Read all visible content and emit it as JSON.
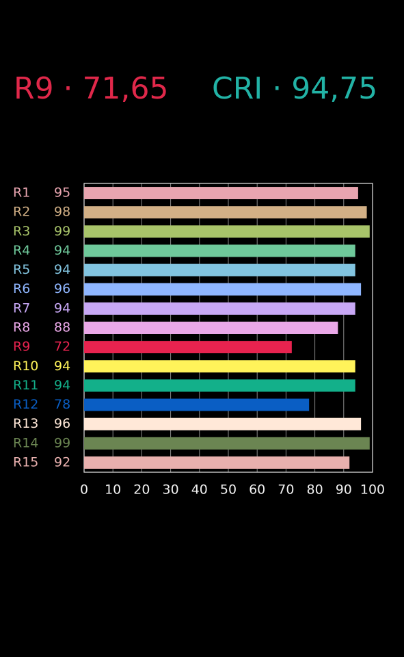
{
  "chart_data": {
    "type": "barh",
    "title_left": "R9 · 71,65",
    "title_right": "CRI · 94,75",
    "title_left_color": "#e0284a",
    "title_right_color": "#22b3a6",
    "categories": [
      "R1",
      "R2",
      "R3",
      "R4",
      "R5",
      "R6",
      "R7",
      "R8",
      "R9",
      "R10",
      "R11",
      "R12",
      "R13",
      "R14",
      "R15"
    ],
    "values": [
      95,
      98,
      99,
      94,
      94,
      96,
      94,
      88,
      72,
      94,
      94,
      78,
      96,
      99,
      92
    ],
    "colors": [
      "#e8a5b0",
      "#d2b086",
      "#a8c46a",
      "#6fc99b",
      "#82c4e0",
      "#8fb6ff",
      "#c8a8f5",
      "#eaa8e8",
      "#e8234f",
      "#fff35a",
      "#13b08a",
      "#0a5ec4",
      "#ffe8d8",
      "#6b8552",
      "#e8b0ae"
    ],
    "xlim": [
      0,
      100
    ],
    "xticks": [
      0,
      10,
      20,
      30,
      40,
      50,
      60,
      70,
      80,
      90,
      100
    ],
    "grid": true
  }
}
